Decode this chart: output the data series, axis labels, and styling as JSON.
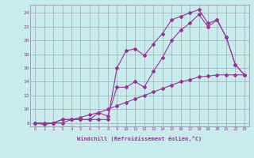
{
  "xlabel": "Windchill (Refroidissement éolien,°C)",
  "background_color": "#c8ecec",
  "line_color": "#993399",
  "grid_color": "#9999aa",
  "xlim": [
    -0.5,
    23.5
  ],
  "ylim": [
    7.5,
    25.2
  ],
  "xticks": [
    0,
    1,
    2,
    3,
    4,
    5,
    6,
    7,
    8,
    9,
    10,
    11,
    12,
    13,
    14,
    15,
    16,
    17,
    18,
    19,
    20,
    21,
    22,
    23
  ],
  "yticks": [
    8,
    10,
    12,
    14,
    16,
    18,
    20,
    22,
    24
  ],
  "line1_x": [
    0,
    1,
    2,
    3,
    4,
    5,
    6,
    7,
    8,
    9,
    10,
    11,
    12,
    13,
    14,
    15,
    16,
    17,
    18,
    19,
    20,
    21,
    22,
    23
  ],
  "line1_y": [
    8.0,
    7.8,
    8.0,
    8.5,
    8.5,
    8.5,
    8.5,
    8.5,
    8.5,
    16.0,
    18.5,
    18.8,
    17.8,
    19.5,
    21.0,
    23.0,
    23.5,
    24.0,
    24.5,
    22.5,
    23.0,
    20.5,
    16.5,
    15.0
  ],
  "line2_x": [
    0,
    1,
    2,
    3,
    4,
    5,
    6,
    7,
    8,
    9,
    10,
    11,
    12,
    13,
    14,
    15,
    16,
    17,
    18,
    19,
    20,
    21,
    22,
    23
  ],
  "line2_y": [
    8.0,
    7.8,
    8.0,
    8.5,
    8.5,
    8.5,
    8.5,
    9.5,
    9.0,
    13.2,
    13.2,
    14.0,
    13.2,
    15.5,
    17.5,
    20.0,
    21.5,
    22.5,
    23.8,
    22.0,
    23.0,
    20.5,
    16.5,
    15.0
  ],
  "line3_x": [
    0,
    1,
    2,
    3,
    4,
    5,
    6,
    7,
    8,
    9,
    10,
    11,
    12,
    13,
    14,
    15,
    16,
    17,
    18,
    19,
    20,
    21,
    22,
    23
  ],
  "line3_y": [
    8.0,
    8.0,
    8.0,
    8.0,
    8.5,
    8.8,
    9.2,
    9.5,
    10.0,
    10.5,
    11.0,
    11.5,
    12.0,
    12.5,
    13.0,
    13.5,
    14.0,
    14.3,
    14.7,
    14.8,
    15.0,
    15.0,
    15.0,
    15.0
  ]
}
